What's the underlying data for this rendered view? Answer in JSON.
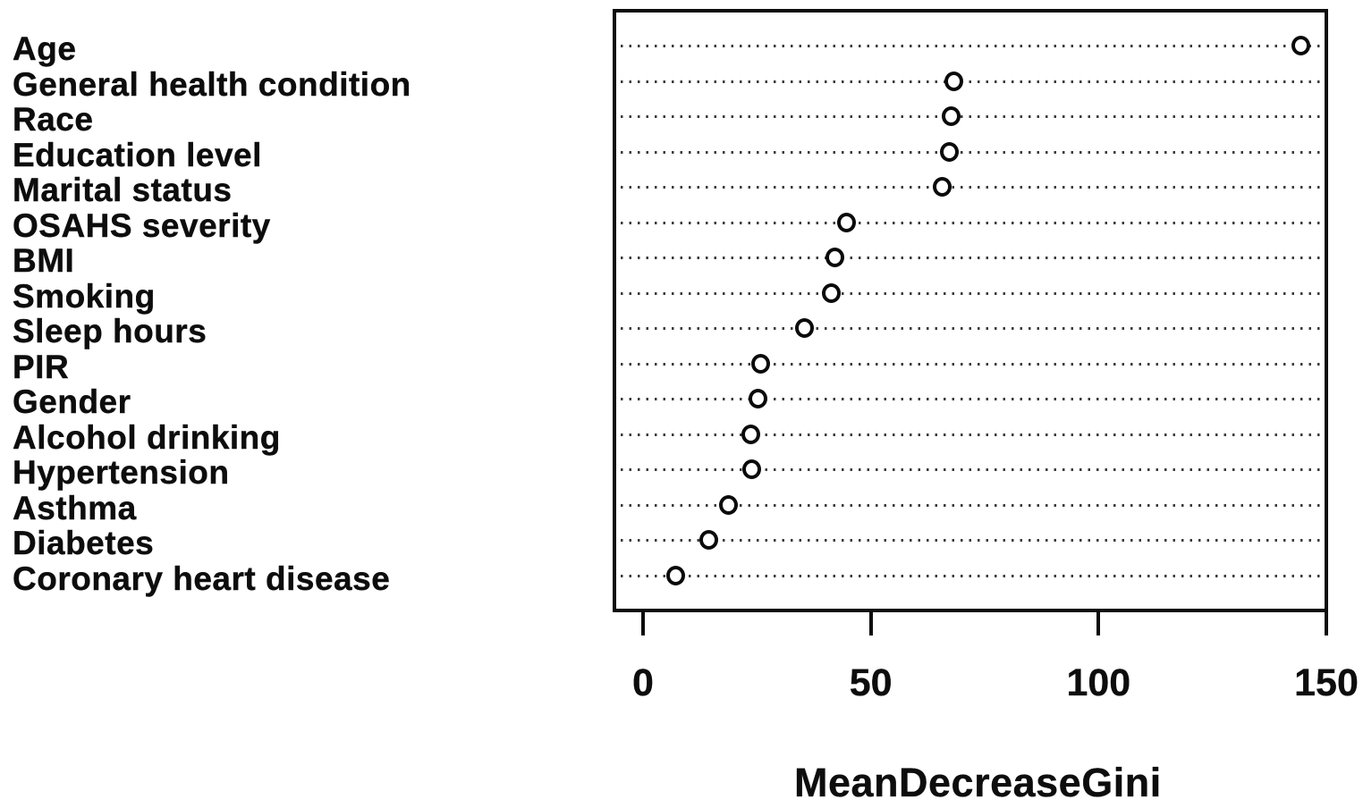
{
  "figure": {
    "background_color": "#ffffff",
    "foreground_color": "#0d0d0d",
    "grid_line_color": "#3c3c3c",
    "marker": "open-circle"
  },
  "chart_data": {
    "type": "scatter",
    "variant": "dotchart-variable-importance",
    "title": "",
    "xlabel": "MeanDecreaseGini",
    "ylabel": "",
    "xlim": [
      0,
      150
    ],
    "xticks": [
      0,
      50,
      100,
      150
    ],
    "grid": "dotted horizontal line per category",
    "legend": "none",
    "categories": [
      "Age",
      "General health condition",
      "Race",
      "Education level",
      "Marital status",
      "OSAHS severity",
      "BMI",
      "Smoking",
      "Sleep hours",
      "PIR",
      "Gender",
      "Alcohol drinking",
      "Hypertension",
      "Asthma",
      "Diabetes",
      "Coronary heart disease"
    ],
    "values": [
      144.4,
      68.3,
      67.7,
      67.2,
      65.6,
      44.6,
      42.1,
      41.4,
      35.4,
      25.9,
      25.3,
      23.6,
      23.8,
      18.7,
      14.5,
      7.1
    ]
  }
}
